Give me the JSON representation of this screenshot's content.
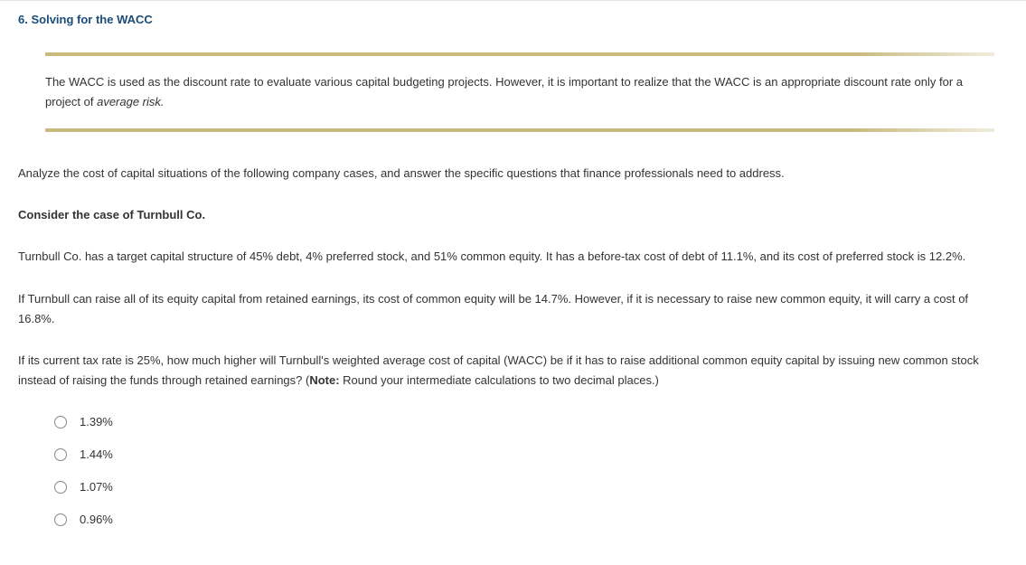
{
  "section": {
    "number": "6.",
    "title": "Solving for the WACC"
  },
  "callout": {
    "text_before_italic": "The WACC is used as the discount rate to evaluate various capital budgeting projects. However, it is important to realize that the WACC is an appropriate discount rate only for a project of ",
    "italic": "average risk.",
    "bar_color": "#c9b97e"
  },
  "paragraphs": {
    "p1": "Analyze the cost of capital situations of the following company cases, and answer the specific questions that finance professionals need to address.",
    "p2_bold": "Consider the case of Turnbull Co.",
    "p3": "Turnbull Co. has a target capital structure of 45% debt, 4% preferred stock, and 51% common equity. It has a before-tax cost of debt of 11.1%, and its cost of preferred stock is 12.2%.",
    "p4": "If Turnbull can raise all of its equity capital from retained earnings, its cost of common equity will be 14.7%. However, if it is necessary to raise new common equity, it will carry a cost of 16.8%.",
    "p5_before_note": "If its current tax rate is 25%, how much higher will Turnbull's weighted average cost of capital (WACC) be if it has to raise additional common equity capital by issuing new common stock instead of raising the funds through retained earnings? (",
    "p5_note_label": "Note:",
    "p5_after_note": " Round your intermediate calculations to two decimal places.)"
  },
  "options": [
    {
      "label": "1.39%"
    },
    {
      "label": "1.44%"
    },
    {
      "label": "1.07%"
    },
    {
      "label": "0.96%"
    }
  ]
}
